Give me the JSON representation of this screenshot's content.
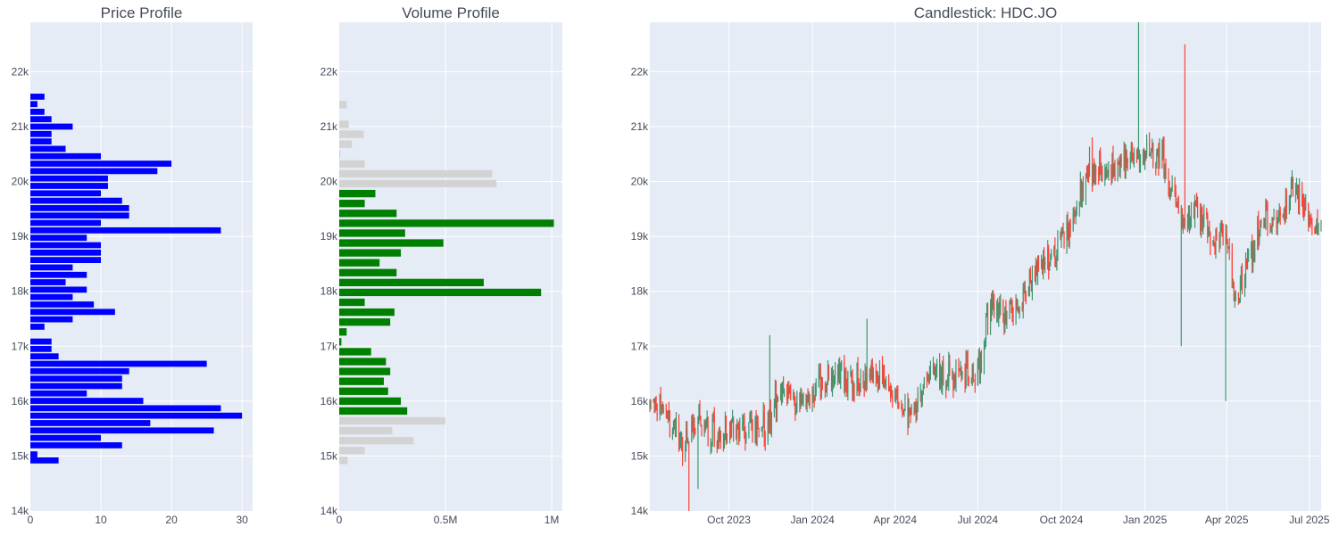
{
  "colors": {
    "plot_bg": "#e5ecf6",
    "grid": "#ffffff",
    "price_bar": "#0000ff",
    "volume_highlight": "#008000",
    "volume_other": "#d3d3d3",
    "candle_up": "#3d9970",
    "candle_down": "#ff4136"
  },
  "chart_data": [
    {
      "type": "bar",
      "orientation": "horizontal",
      "title": "Price Profile",
      "xlim": [
        0,
        31.5
      ],
      "ylim": [
        14000,
        22900
      ],
      "x_ticks": [
        {
          "v": 0,
          "label": "0"
        },
        {
          "v": 10,
          "label": "10"
        },
        {
          "v": 20,
          "label": "20"
        },
        {
          "v": 30,
          "label": "30"
        }
      ],
      "y_ticks": [
        {
          "v": 14000,
          "label": "14k"
        },
        {
          "v": 15000,
          "label": "15k"
        },
        {
          "v": 16000,
          "label": "16k"
        },
        {
          "v": 17000,
          "label": "17k"
        },
        {
          "v": 18000,
          "label": "18k"
        },
        {
          "v": 19000,
          "label": "19k"
        },
        {
          "v": 20000,
          "label": "20k"
        },
        {
          "v": 21000,
          "label": "21k"
        },
        {
          "v": 22000,
          "label": "22k"
        }
      ],
      "bin_height": 110,
      "bins": [
        {
          "price": 14920,
          "count": 4
        },
        {
          "price": 15030,
          "count": 1
        },
        {
          "price": 15195,
          "count": 13
        },
        {
          "price": 15330,
          "count": 10
        },
        {
          "price": 15465,
          "count": 26
        },
        {
          "price": 15600,
          "count": 17
        },
        {
          "price": 15735,
          "count": 30
        },
        {
          "price": 15870,
          "count": 27
        },
        {
          "price": 16005,
          "count": 16
        },
        {
          "price": 16140,
          "count": 8
        },
        {
          "price": 16275,
          "count": 13
        },
        {
          "price": 16410,
          "count": 13
        },
        {
          "price": 16545,
          "count": 14
        },
        {
          "price": 16680,
          "count": 25
        },
        {
          "price": 16815,
          "count": 4
        },
        {
          "price": 16950,
          "count": 3
        },
        {
          "price": 17085,
          "count": 3
        },
        {
          "price": 17355,
          "count": 2
        },
        {
          "price": 17490,
          "count": 6
        },
        {
          "price": 17625,
          "count": 12
        },
        {
          "price": 17760,
          "count": 9
        },
        {
          "price": 17895,
          "count": 6
        },
        {
          "price": 18030,
          "count": 8
        },
        {
          "price": 18165,
          "count": 5
        },
        {
          "price": 18300,
          "count": 8
        },
        {
          "price": 18435,
          "count": 6
        },
        {
          "price": 18570,
          "count": 10
        },
        {
          "price": 18705,
          "count": 10
        },
        {
          "price": 18840,
          "count": 10
        },
        {
          "price": 18975,
          "count": 8
        },
        {
          "price": 19110,
          "count": 27
        },
        {
          "price": 19245,
          "count": 10
        },
        {
          "price": 19380,
          "count": 14
        },
        {
          "price": 19515,
          "count": 14
        },
        {
          "price": 19650,
          "count": 13
        },
        {
          "price": 19785,
          "count": 10
        },
        {
          "price": 19920,
          "count": 11
        },
        {
          "price": 20055,
          "count": 11
        },
        {
          "price": 20190,
          "count": 18
        },
        {
          "price": 20325,
          "count": 20
        },
        {
          "price": 20460,
          "count": 10
        },
        {
          "price": 20595,
          "count": 5
        },
        {
          "price": 20730,
          "count": 3
        },
        {
          "price": 20865,
          "count": 3
        },
        {
          "price": 21000,
          "count": 6
        },
        {
          "price": 21135,
          "count": 3
        },
        {
          "price": 21270,
          "count": 2
        },
        {
          "price": 21410,
          "count": 1
        },
        {
          "price": 21545,
          "count": 2
        }
      ]
    },
    {
      "type": "bar",
      "orientation": "horizontal",
      "title": "Volume Profile",
      "xlim": [
        0,
        1050000
      ],
      "ylim": [
        14000,
        22900
      ],
      "x_ticks": [
        {
          "v": 0,
          "label": "0"
        },
        {
          "v": 500000,
          "label": "0.5M"
        },
        {
          "v": 1000000,
          "label": "1M"
        }
      ],
      "y_ticks": [
        {
          "v": 14000,
          "label": "14k"
        },
        {
          "v": 15000,
          "label": "15k"
        },
        {
          "v": 16000,
          "label": "16k"
        },
        {
          "v": 17000,
          "label": "17k"
        },
        {
          "v": 18000,
          "label": "18k"
        },
        {
          "v": 19000,
          "label": "19k"
        },
        {
          "v": 20000,
          "label": "20k"
        },
        {
          "v": 21000,
          "label": "21k"
        },
        {
          "v": 22000,
          "label": "22k"
        }
      ],
      "bin_height": 135,
      "bins": [
        {
          "price": 14920,
          "volume": 40000,
          "in_value_area": false
        },
        {
          "price": 15100,
          "volume": 120000,
          "in_value_area": false
        },
        {
          "price": 15280,
          "volume": 350000,
          "in_value_area": false
        },
        {
          "price": 15460,
          "volume": 250000,
          "in_value_area": false
        },
        {
          "price": 15640,
          "volume": 500000,
          "in_value_area": false
        },
        {
          "price": 15820,
          "volume": 320000,
          "in_value_area": true
        },
        {
          "price": 16000,
          "volume": 290000,
          "in_value_area": true
        },
        {
          "price": 16180,
          "volume": 230000,
          "in_value_area": true
        },
        {
          "price": 16360,
          "volume": 210000,
          "in_value_area": true
        },
        {
          "price": 16540,
          "volume": 240000,
          "in_value_area": true
        },
        {
          "price": 16720,
          "volume": 220000,
          "in_value_area": true
        },
        {
          "price": 16900,
          "volume": 150000,
          "in_value_area": true
        },
        {
          "price": 17080,
          "volume": 10000,
          "in_value_area": true
        },
        {
          "price": 17260,
          "volume": 35000,
          "in_value_area": true
        },
        {
          "price": 17440,
          "volume": 240000,
          "in_value_area": true
        },
        {
          "price": 17620,
          "volume": 260000,
          "in_value_area": true
        },
        {
          "price": 17800,
          "volume": 120000,
          "in_value_area": true
        },
        {
          "price": 17980,
          "volume": 950000,
          "in_value_area": true
        },
        {
          "price": 18160,
          "volume": 680000,
          "in_value_area": true
        },
        {
          "price": 18340,
          "volume": 270000,
          "in_value_area": true
        },
        {
          "price": 18520,
          "volume": 190000,
          "in_value_area": true
        },
        {
          "price": 18700,
          "volume": 290000,
          "in_value_area": true
        },
        {
          "price": 18880,
          "volume": 490000,
          "in_value_area": true
        },
        {
          "price": 19060,
          "volume": 310000,
          "in_value_area": true
        },
        {
          "price": 19240,
          "volume": 1010000,
          "in_value_area": true
        },
        {
          "price": 19420,
          "volume": 270000,
          "in_value_area": true
        },
        {
          "price": 19600,
          "volume": 120000,
          "in_value_area": true
        },
        {
          "price": 19780,
          "volume": 170000,
          "in_value_area": true
        },
        {
          "price": 19960,
          "volume": 740000,
          "in_value_area": false
        },
        {
          "price": 20140,
          "volume": 720000,
          "in_value_area": false
        },
        {
          "price": 20320,
          "volume": 120000,
          "in_value_area": false
        },
        {
          "price": 20500,
          "volume": 5000,
          "in_value_area": false
        },
        {
          "price": 20680,
          "volume": 60000,
          "in_value_area": false
        },
        {
          "price": 20860,
          "volume": 115000,
          "in_value_area": false
        },
        {
          "price": 21040,
          "volume": 45000,
          "in_value_area": false
        },
        {
          "price": 21400,
          "volume": 35000,
          "in_value_area": false
        }
      ]
    },
    {
      "type": "candlestick",
      "title": "Candlestick: HDC.JO",
      "x_range": [
        "2023-07-06",
        "2025-07-14"
      ],
      "ylim": [
        14000,
        22900
      ],
      "x_ticks": [
        {
          "v": "2023-10-01",
          "label": "Oct 2023"
        },
        {
          "v": "2024-01-01",
          "label": "Jan 2024"
        },
        {
          "v": "2024-04-01",
          "label": "Apr 2024"
        },
        {
          "v": "2024-07-01",
          "label": "Jul 2024"
        },
        {
          "v": "2024-10-01",
          "label": "Oct 2024"
        },
        {
          "v": "2025-01-01",
          "label": "Jan 2025"
        },
        {
          "v": "2025-04-01",
          "label": "Apr 2025"
        },
        {
          "v": "2025-07-01",
          "label": "Jul 2025"
        }
      ],
      "y_ticks": [
        {
          "v": 14000,
          "label": "14k"
        },
        {
          "v": 15000,
          "label": "15k"
        },
        {
          "v": 16000,
          "label": "16k"
        },
        {
          "v": 17000,
          "label": "17k"
        },
        {
          "v": 18000,
          "label": "18k"
        },
        {
          "v": 19000,
          "label": "19k"
        },
        {
          "v": 20000,
          "label": "20k"
        },
        {
          "v": 21000,
          "label": "21k"
        },
        {
          "v": 22000,
          "label": "22k"
        }
      ],
      "close_path": [
        [
          "2023-07-06",
          16000
        ],
        [
          "2023-07-25",
          15800
        ],
        [
          "2023-08-10",
          15300
        ],
        [
          "2023-08-25",
          15600
        ],
        [
          "2023-09-10",
          15400
        ],
        [
          "2023-09-25",
          15500
        ],
        [
          "2023-10-15",
          15400
        ],
        [
          "2023-10-31",
          15450
        ],
        [
          "2023-11-15",
          15700
        ],
        [
          "2023-11-30",
          16300
        ],
        [
          "2023-12-15",
          15900
        ],
        [
          "2024-01-10",
          16300
        ],
        [
          "2024-02-01",
          16500
        ],
        [
          "2024-02-25",
          16300
        ],
        [
          "2024-03-15",
          16500
        ],
        [
          "2024-03-31",
          16100
        ],
        [
          "2024-04-20",
          15800
        ],
        [
          "2024-05-10",
          16400
        ],
        [
          "2024-06-10",
          16500
        ],
        [
          "2024-06-30",
          16500
        ],
        [
          "2024-07-15",
          17700
        ],
        [
          "2024-08-01",
          17500
        ],
        [
          "2024-08-20",
          17900
        ],
        [
          "2024-09-05",
          18400
        ],
        [
          "2024-09-25",
          18700
        ],
        [
          "2024-10-15",
          19300
        ],
        [
          "2024-10-31",
          20300
        ],
        [
          "2024-11-20",
          20200
        ],
        [
          "2024-12-10",
          20400
        ],
        [
          "2024-12-31",
          20600
        ],
        [
          "2025-01-20",
          20400
        ],
        [
          "2025-02-10",
          19300
        ],
        [
          "2025-02-28",
          19500
        ],
        [
          "2025-03-15",
          18900
        ],
        [
          "2025-03-31",
          19000
        ],
        [
          "2025-04-10",
          17800
        ],
        [
          "2025-04-25",
          18600
        ],
        [
          "2025-05-10",
          19300
        ],
        [
          "2025-05-31",
          19400
        ],
        [
          "2025-06-15",
          19900
        ],
        [
          "2025-06-30",
          19300
        ],
        [
          "2025-07-14",
          19200
        ]
      ],
      "spikes": [
        {
          "date": "2023-08-18",
          "low": 13900
        },
        {
          "date": "2023-08-28",
          "low": 14400
        },
        {
          "date": "2023-11-15",
          "high": 17200
        },
        {
          "date": "2024-03-01",
          "high": 17500
        },
        {
          "date": "2024-08-25",
          "high": 19600
        },
        {
          "date": "2024-12-25",
          "high": 22900
        },
        {
          "date": "2025-02-10",
          "low": 17000
        },
        {
          "date": "2025-02-14",
          "high": 22500
        },
        {
          "date": "2025-03-31",
          "low": 16000
        }
      ]
    }
  ]
}
